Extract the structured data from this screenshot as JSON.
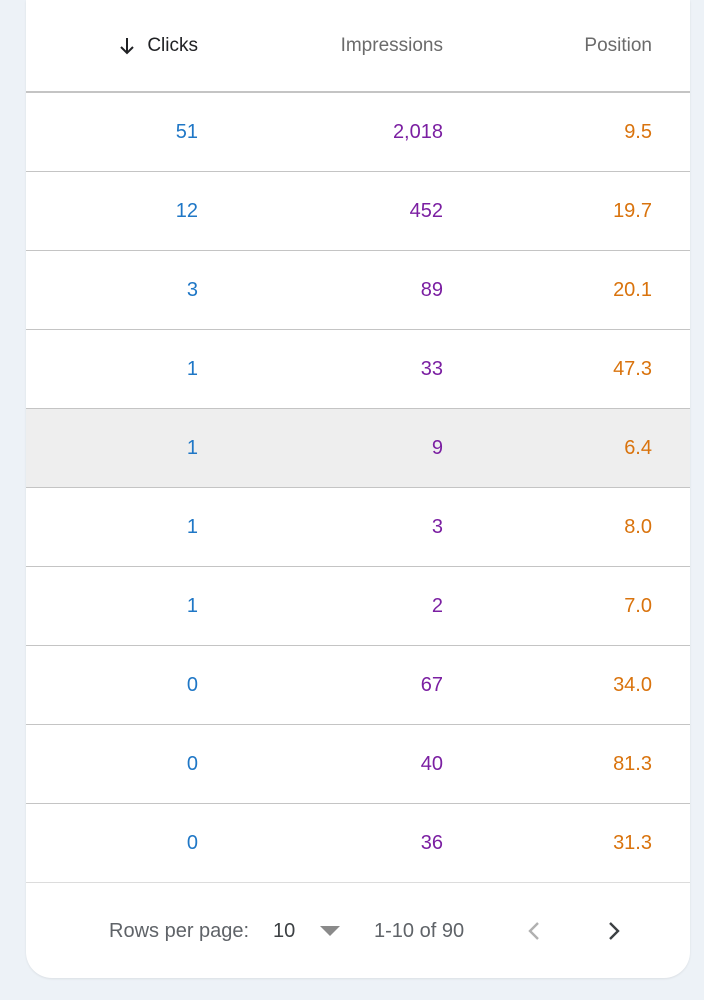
{
  "table": {
    "columns": [
      "Clicks",
      "Impressions",
      "Position"
    ],
    "sorted_column": "Clicks",
    "sort_direction": "descending",
    "rows": [
      {
        "clicks": "51",
        "impressions": "2,018",
        "position": "9.5"
      },
      {
        "clicks": "12",
        "impressions": "452",
        "position": "19.7"
      },
      {
        "clicks": "3",
        "impressions": "89",
        "position": "20.1"
      },
      {
        "clicks": "1",
        "impressions": "33",
        "position": "47.3"
      },
      {
        "clicks": "1",
        "impressions": "9",
        "position": "6.4"
      },
      {
        "clicks": "1",
        "impressions": "3",
        "position": "8.0"
      },
      {
        "clicks": "1",
        "impressions": "2",
        "position": "7.0"
      },
      {
        "clicks": "0",
        "impressions": "67",
        "position": "34.0"
      },
      {
        "clicks": "0",
        "impressions": "40",
        "position": "81.3"
      },
      {
        "clicks": "0",
        "impressions": "36",
        "position": "31.3"
      }
    ],
    "highlighted_row": 5
  },
  "pagination": {
    "rows_per_page_label": "Rows per page:",
    "rows_per_page_value": "10",
    "range_text": "1-10 of 90"
  },
  "icons": {
    "sort": "arrow-down-icon",
    "dropdown": "triangle-down-icon",
    "prev": "chevron-left-icon",
    "next": "chevron-right-icon"
  },
  "colors": {
    "clicks": "#1f77c6",
    "impressions": "#7b1fa2",
    "position": "#d9730d",
    "page_background": "#edf2f7",
    "highlight_row": "#eeeeee"
  }
}
